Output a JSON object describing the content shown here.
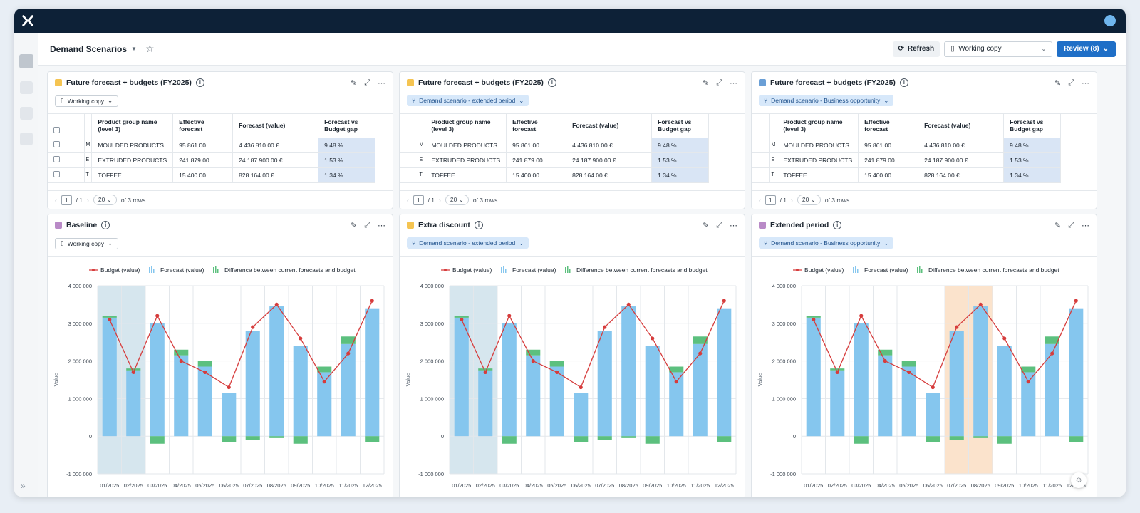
{
  "app": {
    "logo": "x-logo-icon",
    "user": "user-avatar"
  },
  "header": {
    "title": "Demand Scenarios",
    "refresh_label": "Refresh",
    "working_copy_label": "Working copy",
    "review_label": "Review (8)"
  },
  "table_panels": [
    {
      "title": "Future forecast + budgets (FY2025)",
      "color": "#f5c451",
      "chip": "Working copy",
      "chip_style": "plain",
      "columns": [
        "Product group name (level 3)",
        "Effective forecast",
        "Forecast (value)",
        "Forecast vs Budget gap"
      ],
      "rows": [
        [
          "MOULDED PRODUCTS",
          "95 861.00",
          "4 436 810.00 €",
          "9.48 %"
        ],
        [
          "EXTRUDED PRODUCTS",
          "241 879.00",
          "24 187 900.00 €",
          "1.53 %"
        ],
        [
          "TOFFEE",
          "15 400.00",
          "828 164.00 €",
          "1.34 %"
        ]
      ],
      "row_initials": [
        "M",
        "E",
        "T"
      ],
      "page": "1",
      "page_total": "/ 1",
      "page_size": "20",
      "rows_text": "of 3 rows"
    },
    {
      "title": "Future forecast + budgets (FY2025)",
      "color": "#f5c451",
      "chip": "Demand scenario - extended period",
      "chip_style": "blue",
      "columns": [
        "Product group name (level 3)",
        "Effective forecast",
        "Forecast (value)",
        "Forecast vs Budget gap"
      ],
      "rows": [
        [
          "MOULDED PRODUCTS",
          "95 861.00",
          "4 436 810.00 €",
          "9.48 %"
        ],
        [
          "EXTRUDED PRODUCTS",
          "241 879.00",
          "24 187 900.00 €",
          "1.53 %"
        ],
        [
          "TOFFEE",
          "15 400.00",
          "828 164.00 €",
          "1.34 %"
        ]
      ],
      "row_initials": [
        "M",
        "E",
        "T"
      ],
      "page": "1",
      "page_total": "/ 1",
      "page_size": "20",
      "rows_text": "of 3 rows"
    },
    {
      "title": "Future forecast + budgets (FY2025)",
      "color": "#6a9fd6",
      "chip": "Demand scenario - Business opportunity",
      "chip_style": "blue",
      "columns": [
        "Product group name (level 3)",
        "Effective forecast",
        "Forecast (value)",
        "Forecast vs Budget gap"
      ],
      "rows": [
        [
          "MOULDED PRODUCTS",
          "95 861.00",
          "4 436 810.00 €",
          "9.48 %"
        ],
        [
          "EXTRUDED PRODUCTS",
          "241 879.00",
          "24 187 900.00 €",
          "1.53 %"
        ],
        [
          "TOFFEE",
          "15 400.00",
          "828 164.00 €",
          "1.34 %"
        ]
      ],
      "row_initials": [
        "M",
        "E",
        "T"
      ],
      "page": "1",
      "page_total": "/ 1",
      "page_size": "20",
      "rows_text": "of 3 rows"
    }
  ],
  "chart_panels": [
    {
      "title": "Baseline",
      "color": "#b98ac7",
      "chip": "Working copy",
      "chip_style": "plain",
      "highlight": [
        "01/2025",
        "02/2025"
      ],
      "highlight_color": "#d6e6ee"
    },
    {
      "title": "Extra discount",
      "color": "#f5c451",
      "chip": "Demand scenario - extended period",
      "chip_style": "blue",
      "highlight": [
        "01/2025",
        "02/2025"
      ],
      "highlight_color": "#d6e6ee"
    },
    {
      "title": "Extended period",
      "color": "#b98ac7",
      "chip": "Demand scenario - Business opportunity",
      "chip_style": "blue",
      "highlight": [
        "07/2025",
        "08/2025"
      ],
      "highlight_color": "#fbe3cc"
    }
  ],
  "chart_data": {
    "type": "bar",
    "categories": [
      "01/2025",
      "02/2025",
      "03/2025",
      "04/2025",
      "05/2025",
      "06/2025",
      "07/2025",
      "08/2025",
      "09/2025",
      "10/2025",
      "11/2025",
      "12/2025"
    ],
    "series": [
      {
        "name": "Budget (value)",
        "kind": "line",
        "color": "#d63c3c",
        "values": [
          3100000,
          1700000,
          3200000,
          2000000,
          1700000,
          1300000,
          2900000,
          3500000,
          2600000,
          1450000,
          2200000,
          3600000
        ]
      },
      {
        "name": "Forecast (value)",
        "kind": "bar",
        "color": "#85c6ee",
        "values": [
          3150000,
          1750000,
          3000000,
          2150000,
          1850000,
          1150000,
          2800000,
          3450000,
          2400000,
          1700000,
          2450000,
          3400000
        ]
      },
      {
        "name": "Difference between current forecasts and budget",
        "kind": "bar",
        "color": "#5cc07e",
        "values": [
          50000,
          50000,
          -200000,
          150000,
          150000,
          -150000,
          -100000,
          -50000,
          -200000,
          150000,
          200000,
          -150000
        ]
      }
    ],
    "ylabel": "Value",
    "ylim": [
      -1000000,
      4000000
    ],
    "yticks": [
      "4 000 000",
      "3 000 000",
      "2 000 000",
      "1 000 000",
      "0",
      "-1 000 000"
    ],
    "yticks_values": [
      4000000,
      3000000,
      2000000,
      1000000,
      0,
      -1000000
    ],
    "grid": true,
    "legend_position": "top"
  }
}
